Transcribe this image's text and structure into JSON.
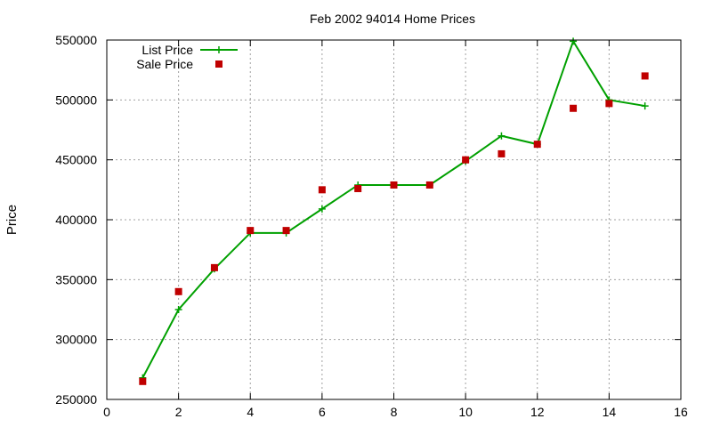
{
  "chart_data": {
    "type": "line",
    "title": "Feb 2002 94014 Home Prices",
    "xlabel": "",
    "ylabel": "Price",
    "xlim": [
      0,
      16
    ],
    "ylim": [
      250000,
      550000
    ],
    "xticks": [
      0,
      2,
      4,
      6,
      8,
      10,
      12,
      14,
      16
    ],
    "yticks": [
      250000,
      300000,
      350000,
      400000,
      450000,
      500000,
      550000
    ],
    "grid": true,
    "legend_position": "top-left",
    "series": [
      {
        "name": "List Price",
        "style": "line-plus",
        "color": "#00a000",
        "x": [
          1,
          2,
          3,
          4,
          5,
          6,
          7,
          8,
          9,
          10,
          11,
          12,
          13,
          14,
          15
        ],
        "y": [
          268000,
          325000,
          359000,
          389000,
          389000,
          409000,
          429000,
          429000,
          429000,
          449000,
          470000,
          463000,
          549000,
          500000,
          495000
        ]
      },
      {
        "name": "Sale Price",
        "style": "square-points",
        "color": "#c00000",
        "x": [
          1,
          2,
          3,
          4,
          5,
          6,
          7,
          8,
          9,
          10,
          11,
          12,
          13,
          14,
          15
        ],
        "y": [
          265000,
          340000,
          360000,
          391000,
          391000,
          425000,
          426000,
          429000,
          429000,
          450000,
          455000,
          463000,
          493000,
          497000,
          520000
        ]
      }
    ]
  }
}
